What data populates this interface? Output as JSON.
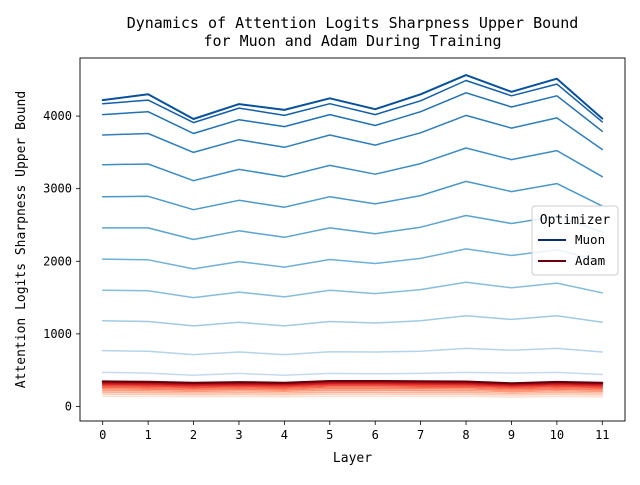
{
  "chart_data": {
    "type": "line",
    "title": "Dynamics of Attention Logits Sharpness Upper Bound\nfor Muon and Adam During Training",
    "xlabel": "Layer",
    "ylabel": "Attention Logits Sharpness Upper Bound",
    "x": [
      0,
      1,
      2,
      3,
      4,
      5,
      6,
      7,
      8,
      9,
      10,
      11
    ],
    "xlim": [
      -0.5,
      11.5
    ],
    "ylim": [
      -200,
      4800
    ],
    "yticks": [
      0,
      1000,
      2000,
      3000,
      4000
    ],
    "grid": false,
    "legend": {
      "title": "Optimizer",
      "position": "center-right",
      "entries": [
        {
          "label": "Muon",
          "color": "#08306b"
        },
        {
          "label": "Adam",
          "color": "#67000d"
        }
      ]
    },
    "series": [
      {
        "name": "Muon",
        "step": 1,
        "color": "#c6dbef",
        "values": [
          470,
          460,
          430,
          455,
          430,
          455,
          450,
          455,
          470,
          460,
          470,
          440
        ]
      },
      {
        "name": "Muon",
        "step": 2,
        "color": "#b5d4e9",
        "values": [
          770,
          760,
          715,
          750,
          715,
          755,
          750,
          760,
          800,
          775,
          800,
          750
        ]
      },
      {
        "name": "Muon",
        "step": 3,
        "color": "#a0cbe2",
        "values": [
          1180,
          1170,
          1110,
          1160,
          1110,
          1170,
          1150,
          1180,
          1250,
          1200,
          1250,
          1160
        ]
      },
      {
        "name": "Muon",
        "step": 4,
        "color": "#87bddc",
        "values": [
          1600,
          1595,
          1500,
          1575,
          1510,
          1600,
          1555,
          1610,
          1710,
          1635,
          1700,
          1565
        ]
      },
      {
        "name": "Muon",
        "step": 5,
        "color": "#6fb0d7",
        "values": [
          2030,
          2020,
          1895,
          1995,
          1920,
          2025,
          1970,
          2040,
          2170,
          2080,
          2160,
          2000
        ]
      },
      {
        "name": "Muon",
        "step": 6,
        "color": "#5ba3d0",
        "values": [
          2460,
          2460,
          2300,
          2420,
          2330,
          2460,
          2380,
          2470,
          2630,
          2520,
          2620,
          2400
        ]
      },
      {
        "name": "Muon",
        "step": 7,
        "color": "#4a98c9",
        "values": [
          2890,
          2895,
          2710,
          2840,
          2745,
          2890,
          2790,
          2905,
          3100,
          2960,
          3070,
          2760
        ]
      },
      {
        "name": "Muon",
        "step": 8,
        "color": "#3d8dc4",
        "values": [
          3330,
          3340,
          3110,
          3265,
          3165,
          3320,
          3200,
          3345,
          3560,
          3400,
          3525,
          3165
        ]
      },
      {
        "name": "Muon",
        "step": 9,
        "color": "#2f7ebc",
        "values": [
          3740,
          3760,
          3500,
          3675,
          3570,
          3740,
          3600,
          3770,
          4010,
          3835,
          3975,
          3540
        ]
      },
      {
        "name": "Muon",
        "step": 10,
        "color": "#2171b5",
        "values": [
          4020,
          4060,
          3760,
          3950,
          3855,
          4020,
          3870,
          4060,
          4320,
          4125,
          4280,
          3790
        ]
      },
      {
        "name": "Muon",
        "step": 11,
        "color": "#135fa7",
        "values": [
          4170,
          4220,
          3910,
          4110,
          4010,
          4170,
          4020,
          4210,
          4490,
          4280,
          4440,
          3920
        ]
      },
      {
        "name": "Muon",
        "step": 12,
        "color": "#08519c",
        "values": [
          4220,
          4300,
          3960,
          4165,
          4085,
          4245,
          4095,
          4300,
          4565,
          4335,
          4515,
          3965
        ]
      },
      {
        "name": "Adam",
        "step": 1,
        "color": "#fee0d2",
        "values": [
          140,
          140,
          135,
          138,
          135,
          140,
          140,
          140,
          140,
          130,
          138,
          132
        ]
      },
      {
        "name": "Adam",
        "step": 2,
        "color": "#fdcab5",
        "values": [
          170,
          168,
          162,
          165,
          162,
          170,
          170,
          168,
          168,
          158,
          166,
          160
        ]
      },
      {
        "name": "Adam",
        "step": 3,
        "color": "#fcb398",
        "values": [
          195,
          192,
          186,
          190,
          186,
          196,
          196,
          194,
          194,
          182,
          192,
          185
        ]
      },
      {
        "name": "Adam",
        "step": 4,
        "color": "#fc9b7c",
        "values": [
          220,
          216,
          208,
          214,
          209,
          222,
          222,
          220,
          219,
          205,
          216,
          208
        ]
      },
      {
        "name": "Adam",
        "step": 5,
        "color": "#fb8363",
        "values": [
          243,
          238,
          230,
          236,
          231,
          246,
          246,
          243,
          242,
          226,
          238,
          230
        ]
      },
      {
        "name": "Adam",
        "step": 6,
        "color": "#f6694f",
        "values": [
          265,
          259,
          250,
          257,
          251,
          268,
          268,
          265,
          264,
          246,
          259,
          250
        ]
      },
      {
        "name": "Adam",
        "step": 7,
        "color": "#ef4c3b",
        "values": [
          285,
          279,
          269,
          276,
          270,
          289,
          289,
          286,
          284,
          265,
          279,
          269
        ]
      },
      {
        "name": "Adam",
        "step": 8,
        "color": "#df2e2a",
        "values": [
          303,
          297,
          286,
          294,
          287,
          308,
          308,
          304,
          302,
          282,
          297,
          286
        ]
      },
      {
        "name": "Adam",
        "step": 9,
        "color": "#c9181d",
        "values": [
          318,
          312,
          300,
          309,
          301,
          323,
          323,
          319,
          317,
          296,
          312,
          300
        ]
      },
      {
        "name": "Adam",
        "step": 10,
        "color": "#b11218",
        "values": [
          330,
          324,
          311,
          320,
          312,
          335,
          335,
          331,
          328,
          306,
          323,
          311
        ]
      },
      {
        "name": "Adam",
        "step": 11,
        "color": "#920b13",
        "values": [
          339,
          333,
          320,
          329,
          321,
          344,
          344,
          340,
          337,
          315,
          332,
          320
        ]
      },
      {
        "name": "Adam",
        "step": 12,
        "color": "#67000d",
        "values": [
          346,
          340,
          326,
          336,
          328,
          351,
          351,
          347,
          344,
          321,
          339,
          326
        ]
      }
    ]
  }
}
